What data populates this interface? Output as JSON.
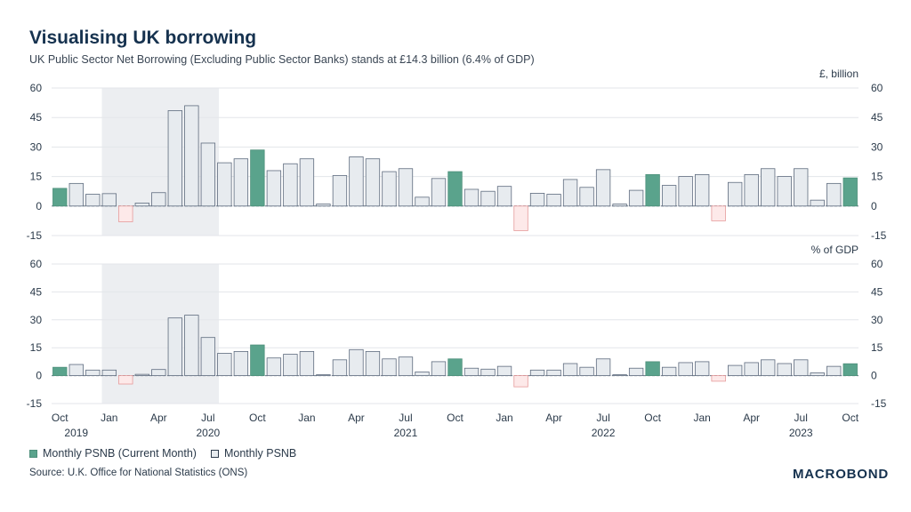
{
  "title": "Visualising UK borrowing",
  "subtitle": "UK Public Sector Net Borrowing (Excluding Public Sector Banks) stands at £14.3 billion (6.4% of GDP)",
  "legend": {
    "current": "Monthly PSNB (Current Month)",
    "monthly": "Monthly PSNB"
  },
  "source": "Source: U.K. Office for National Statistics (ONS)",
  "brand": "MACROBOND",
  "colors": {
    "current_fill": "#5aa38c",
    "current_stroke": "#4d8f7a",
    "monthly_fill": "#e7ebef",
    "monthly_stroke": "#5e6b7e",
    "negative_fill": "#fde9e9",
    "negative_stroke": "#e69a9a",
    "shade": "#eceef1",
    "grid": "#e3e6ea",
    "text": "#2b3a4a"
  },
  "chart_data": [
    {
      "type": "bar",
      "unit_label": "£, billion",
      "ylim": [
        -15,
        60
      ],
      "yticks": [
        -15,
        0,
        15,
        30,
        45,
        60
      ],
      "months": [
        "2019-10",
        "2019-11",
        "2019-12",
        "2020-01",
        "2020-02",
        "2020-03",
        "2020-04",
        "2020-05",
        "2020-06",
        "2020-07",
        "2020-08",
        "2020-09",
        "2020-10",
        "2020-11",
        "2020-12",
        "2021-01",
        "2021-02",
        "2021-03",
        "2021-04",
        "2021-05",
        "2021-06",
        "2021-07",
        "2021-08",
        "2021-09",
        "2021-10",
        "2021-11",
        "2021-12",
        "2022-01",
        "2022-02",
        "2022-03",
        "2022-04",
        "2022-05",
        "2022-06",
        "2022-07",
        "2022-08",
        "2022-09",
        "2022-10",
        "2022-11",
        "2022-12",
        "2023-01",
        "2023-02",
        "2023-03",
        "2023-04",
        "2023-05",
        "2023-06",
        "2023-07",
        "2023-08",
        "2023-09",
        "2023-10"
      ],
      "values": [
        9,
        11.5,
        6,
        6.3,
        -8,
        1.5,
        6.8,
        48.5,
        51,
        32,
        22,
        24,
        28.5,
        18,
        21.5,
        24,
        1,
        15.5,
        25,
        24,
        17.5,
        19,
        4.5,
        14,
        17.5,
        8.5,
        7.5,
        10,
        -12.5,
        6.5,
        6,
        13.5,
        9.5,
        18.5,
        1,
        8,
        16,
        10.5,
        15,
        16,
        -7.5,
        12,
        16,
        19,
        15,
        19,
        3,
        11.5,
        14.3
      ],
      "current_month_flags": [
        1,
        0,
        0,
        0,
        0,
        0,
        0,
        0,
        0,
        0,
        0,
        0,
        1,
        0,
        0,
        0,
        0,
        0,
        0,
        0,
        0,
        0,
        0,
        0,
        1,
        0,
        0,
        0,
        0,
        0,
        0,
        0,
        0,
        0,
        0,
        0,
        1,
        0,
        0,
        0,
        0,
        0,
        0,
        0,
        0,
        0,
        0,
        0,
        1
      ]
    },
    {
      "type": "bar",
      "unit_label": "% of GDP",
      "ylim": [
        -15,
        60
      ],
      "yticks": [
        -15,
        0,
        15,
        30,
        45,
        60
      ],
      "months": [
        "2019-10",
        "2019-11",
        "2019-12",
        "2020-01",
        "2020-02",
        "2020-03",
        "2020-04",
        "2020-05",
        "2020-06",
        "2020-07",
        "2020-08",
        "2020-09",
        "2020-10",
        "2020-11",
        "2020-12",
        "2021-01",
        "2021-02",
        "2021-03",
        "2021-04",
        "2021-05",
        "2021-06",
        "2021-07",
        "2021-08",
        "2021-09",
        "2021-10",
        "2021-11",
        "2021-12",
        "2022-01",
        "2022-02",
        "2022-03",
        "2022-04",
        "2022-05",
        "2022-06",
        "2022-07",
        "2022-08",
        "2022-09",
        "2022-10",
        "2022-11",
        "2022-12",
        "2023-01",
        "2023-02",
        "2023-03",
        "2023-04",
        "2023-05",
        "2023-06",
        "2023-07",
        "2023-08",
        "2023-09",
        "2023-10"
      ],
      "values": [
        4.5,
        6,
        3,
        3,
        -4.5,
        0.7,
        3.3,
        31,
        32.5,
        20.5,
        12,
        13,
        16.5,
        9.5,
        11.5,
        13,
        0.5,
        8.5,
        14,
        13,
        9,
        10,
        2,
        7.5,
        9,
        4,
        3.5,
        5,
        -6,
        3,
        3,
        6.5,
        4.5,
        9,
        0.5,
        4,
        7.5,
        4.5,
        7,
        7.5,
        -3,
        5.5,
        7,
        8.5,
        6.5,
        8.5,
        1.5,
        5,
        6.4
      ],
      "current_month_flags": [
        1,
        0,
        0,
        0,
        0,
        0,
        0,
        0,
        0,
        0,
        0,
        0,
        1,
        0,
        0,
        0,
        0,
        0,
        0,
        0,
        0,
        0,
        0,
        0,
        1,
        0,
        0,
        0,
        0,
        0,
        0,
        0,
        0,
        0,
        0,
        0,
        1,
        0,
        0,
        0,
        0,
        0,
        0,
        0,
        0,
        0,
        0,
        0,
        1
      ]
    }
  ],
  "shaded_period": {
    "start": "2020-01",
    "end": "2020-07"
  },
  "x_axis": {
    "month_labels": [
      {
        "month": "2019-10",
        "label": "Oct"
      },
      {
        "month": "2020-01",
        "label": "Jan"
      },
      {
        "month": "2020-04",
        "label": "Apr"
      },
      {
        "month": "2020-07",
        "label": "Jul"
      },
      {
        "month": "2020-10",
        "label": "Oct"
      },
      {
        "month": "2021-01",
        "label": "Jan"
      },
      {
        "month": "2021-04",
        "label": "Apr"
      },
      {
        "month": "2021-07",
        "label": "Jul"
      },
      {
        "month": "2021-10",
        "label": "Oct"
      },
      {
        "month": "2022-01",
        "label": "Jan"
      },
      {
        "month": "2022-04",
        "label": "Apr"
      },
      {
        "month": "2022-07",
        "label": "Jul"
      },
      {
        "month": "2022-10",
        "label": "Oct"
      },
      {
        "month": "2023-01",
        "label": "Jan"
      },
      {
        "month": "2023-04",
        "label": "Apr"
      },
      {
        "month": "2023-07",
        "label": "Jul"
      },
      {
        "month": "2023-10",
        "label": "Oct"
      }
    ],
    "year_labels": [
      {
        "month": "2019-11",
        "label": "2019"
      },
      {
        "month": "2020-07",
        "label": "2020"
      },
      {
        "month": "2021-07",
        "label": "2021"
      },
      {
        "month": "2022-07",
        "label": "2022"
      },
      {
        "month": "2023-07",
        "label": "2023"
      }
    ]
  }
}
